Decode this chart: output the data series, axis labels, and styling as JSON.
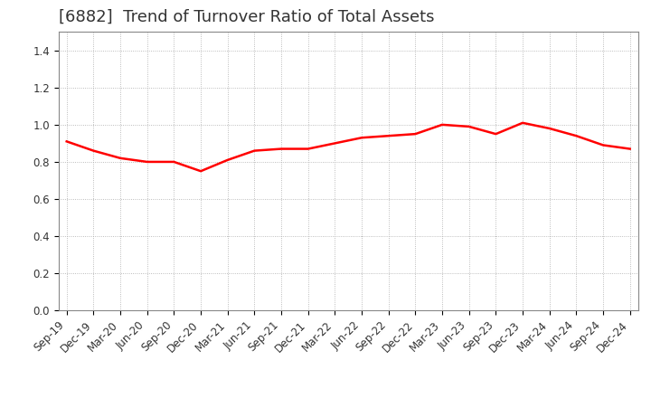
{
  "title": "[6882]  Trend of Turnover Ratio of Total Assets",
  "x_labels": [
    "Sep-19",
    "Dec-19",
    "Mar-20",
    "Jun-20",
    "Sep-20",
    "Dec-20",
    "Mar-21",
    "Jun-21",
    "Sep-21",
    "Dec-21",
    "Mar-22",
    "Jun-22",
    "Sep-22",
    "Dec-22",
    "Mar-23",
    "Jun-23",
    "Sep-23",
    "Dec-23",
    "Mar-24",
    "Jun-24",
    "Sep-24",
    "Dec-24"
  ],
  "y_values": [
    0.91,
    0.86,
    0.82,
    0.8,
    0.8,
    0.75,
    0.81,
    0.86,
    0.87,
    0.87,
    0.9,
    0.93,
    0.94,
    0.95,
    1.0,
    0.99,
    0.95,
    1.01,
    0.98,
    0.94,
    0.89,
    0.87
  ],
  "line_color": "#FF0000",
  "line_width": 1.8,
  "ylim": [
    0.0,
    1.5
  ],
  "yticks": [
    0.0,
    0.2,
    0.4,
    0.6,
    0.8,
    1.0,
    1.2,
    1.4
  ],
  "background_color": "#FFFFFF",
  "plot_bg_color": "#FFFFFF",
  "grid_color": "#AAAAAA",
  "title_fontsize": 13,
  "tick_fontsize": 8.5,
  "title_color": "#333333"
}
